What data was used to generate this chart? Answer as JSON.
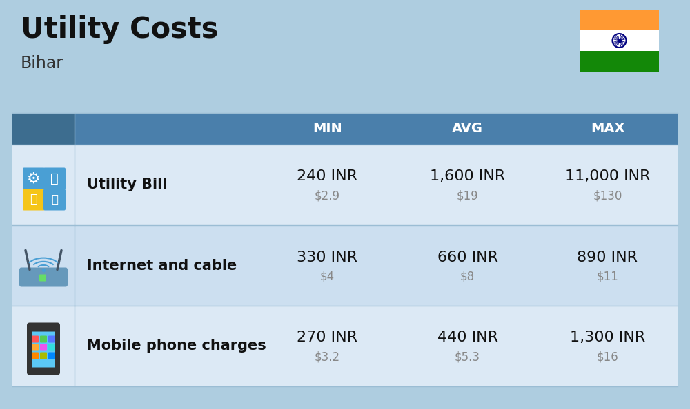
{
  "title": "Utility Costs",
  "subtitle": "Bihar",
  "background_color": "#aecde0",
  "header_bg_color": "#4a7fab",
  "header_text_color": "#ffffff",
  "row_bg_color_1": "#dce9f5",
  "row_bg_color_2": "#ccdff0",
  "col_header_labels": [
    "MIN",
    "AVG",
    "MAX"
  ],
  "rows": [
    {
      "label": "Utility Bill",
      "min_inr": "240 INR",
      "min_usd": "$2.9",
      "avg_inr": "1,600 INR",
      "avg_usd": "$19",
      "max_inr": "11,000 INR",
      "max_usd": "$130",
      "icon": "utility"
    },
    {
      "label": "Internet and cable",
      "min_inr": "330 INR",
      "min_usd": "$4",
      "avg_inr": "660 INR",
      "avg_usd": "$8",
      "max_inr": "890 INR",
      "max_usd": "$11",
      "icon": "internet"
    },
    {
      "label": "Mobile phone charges",
      "min_inr": "270 INR",
      "min_usd": "$3.2",
      "avg_inr": "440 INR",
      "avg_usd": "$5.3",
      "max_inr": "1,300 INR",
      "max_usd": "$16",
      "icon": "mobile"
    }
  ],
  "flag_colors": [
    "#FF9933",
    "#ffffff",
    "#138808"
  ],
  "flag_ashoka_color": "#000080",
  "title_fontsize": 30,
  "subtitle_fontsize": 17,
  "header_fontsize": 14,
  "cell_inr_fontsize": 16,
  "cell_usd_fontsize": 12,
  "label_fontsize": 15,
  "icon_fontsize": 36
}
